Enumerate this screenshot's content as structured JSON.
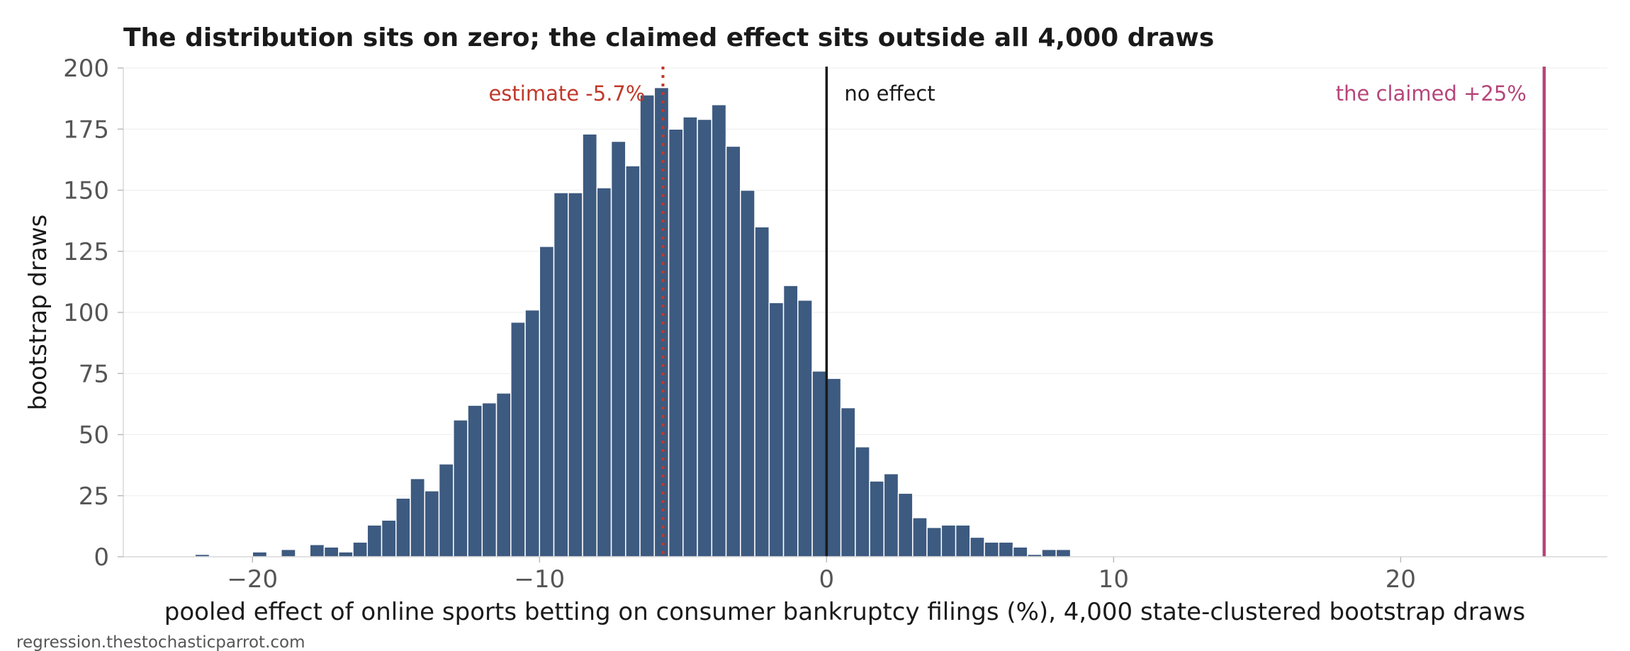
{
  "chart_data": {
    "type": "bar",
    "title": "The distribution sits on zero; the claimed effect sits outside all 4,000 draws",
    "xlabel": "pooled effect of online sports betting on consumer bankruptcy filings (%), 4,000 state-clustered bootstrap draws",
    "ylabel": "bootstrap draws",
    "xlim": [
      -24.5,
      27.2
    ],
    "ylim": [
      0,
      200
    ],
    "xticks": [
      -20,
      -10,
      0,
      10,
      20
    ],
    "xtick_labels": [
      "−20",
      "−10",
      "0",
      "10",
      "20"
    ],
    "yticks": [
      0,
      25,
      50,
      75,
      100,
      125,
      150,
      175,
      200
    ],
    "grid": true,
    "bin_width": 0.5,
    "bins": [
      {
        "x": -22.0,
        "count": 1
      },
      {
        "x": -20.0,
        "count": 2
      },
      {
        "x": -19.0,
        "count": 3
      },
      {
        "x": -18.0,
        "count": 5
      },
      {
        "x": -17.5,
        "count": 4
      },
      {
        "x": -17.0,
        "count": 2
      },
      {
        "x": -16.5,
        "count": 6
      },
      {
        "x": -16.0,
        "count": 13
      },
      {
        "x": -15.5,
        "count": 15
      },
      {
        "x": -15.0,
        "count": 24
      },
      {
        "x": -14.5,
        "count": 32
      },
      {
        "x": -14.0,
        "count": 27
      },
      {
        "x": -13.5,
        "count": 38
      },
      {
        "x": -13.0,
        "count": 56
      },
      {
        "x": -12.5,
        "count": 62
      },
      {
        "x": -12.0,
        "count": 63
      },
      {
        "x": -11.5,
        "count": 67
      },
      {
        "x": -11.0,
        "count": 96
      },
      {
        "x": -10.5,
        "count": 101
      },
      {
        "x": -10.0,
        "count": 127
      },
      {
        "x": -9.5,
        "count": 149
      },
      {
        "x": -9.0,
        "count": 149
      },
      {
        "x": -8.5,
        "count": 173
      },
      {
        "x": -8.0,
        "count": 151
      },
      {
        "x": -7.5,
        "count": 170
      },
      {
        "x": -7.0,
        "count": 160
      },
      {
        "x": -6.5,
        "count": 189
      },
      {
        "x": -6.0,
        "count": 192
      },
      {
        "x": -5.5,
        "count": 175
      },
      {
        "x": -5.0,
        "count": 180
      },
      {
        "x": -4.5,
        "count": 179
      },
      {
        "x": -4.0,
        "count": 185
      },
      {
        "x": -3.5,
        "count": 168
      },
      {
        "x": -3.0,
        "count": 150
      },
      {
        "x": -2.5,
        "count": 135
      },
      {
        "x": -2.0,
        "count": 104
      },
      {
        "x": -1.5,
        "count": 111
      },
      {
        "x": -1.0,
        "count": 105
      },
      {
        "x": -0.5,
        "count": 76
      },
      {
        "x": 0.0,
        "count": 73
      },
      {
        "x": 0.5,
        "count": 61
      },
      {
        "x": 1.0,
        "count": 45
      },
      {
        "x": 1.5,
        "count": 31
      },
      {
        "x": 2.0,
        "count": 34
      },
      {
        "x": 2.5,
        "count": 26
      },
      {
        "x": 3.0,
        "count": 16
      },
      {
        "x": 3.5,
        "count": 12
      },
      {
        "x": 4.0,
        "count": 13
      },
      {
        "x": 4.5,
        "count": 13
      },
      {
        "x": 5.0,
        "count": 8
      },
      {
        "x": 5.5,
        "count": 6
      },
      {
        "x": 6.0,
        "count": 6
      },
      {
        "x": 6.5,
        "count": 4
      },
      {
        "x": 7.0,
        "count": 1
      },
      {
        "x": 7.5,
        "count": 3
      },
      {
        "x": 8.0,
        "count": 3
      }
    ],
    "reference_lines": [
      {
        "x": -5.7,
        "label": "estimate -5.7%",
        "color": "#c0392b",
        "style": "dotted",
        "label_side": "left"
      },
      {
        "x": 0,
        "label": "no effect",
        "color": "#1a1a1a",
        "style": "solid",
        "label_side": "right"
      },
      {
        "x": 25,
        "label": "the claimed +25%",
        "color": "#b5467a",
        "style": "solid",
        "label_side": "left"
      }
    ],
    "bar_color": "#3d5a80",
    "credit": "regression.thestochasticparrot.com"
  }
}
